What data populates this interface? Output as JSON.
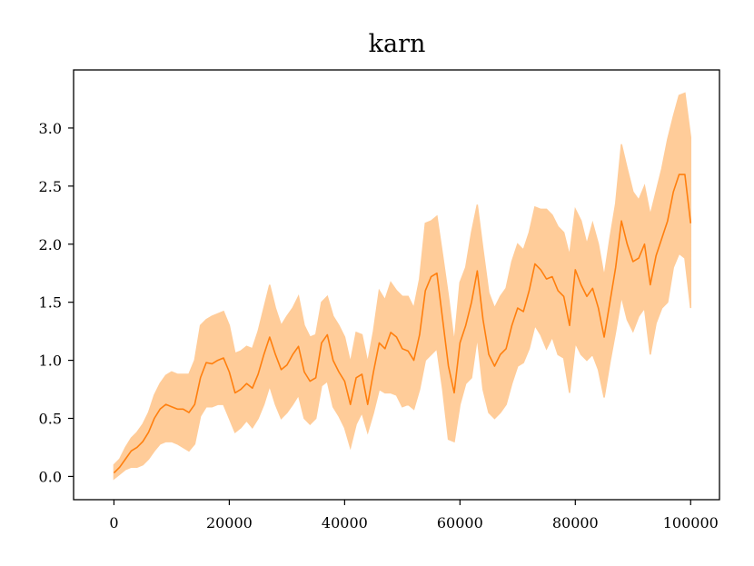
{
  "chart_data": {
    "type": "line",
    "title": "karn",
    "xlabel": "",
    "ylabel": "",
    "xlim": [
      -7000,
      105000
    ],
    "ylim": [
      -0.2,
      3.5
    ],
    "xticks": [
      0,
      20000,
      40000,
      60000,
      80000,
      100000
    ],
    "xtick_labels": [
      "0",
      "20000",
      "40000",
      "60000",
      "80000",
      "100000"
    ],
    "yticks": [
      0.0,
      0.5,
      1.0,
      1.5,
      2.0,
      2.5,
      3.0
    ],
    "ytick_labels": [
      "0.0",
      "0.5",
      "1.0",
      "1.5",
      "2.0",
      "2.5",
      "3.0"
    ],
    "grid": false,
    "series": [
      {
        "color": "#ff7f0e",
        "band_color": "#ffcc99",
        "x": [
          0,
          1000,
          2000,
          3000,
          4000,
          5000,
          6000,
          7000,
          8000,
          9000,
          10000,
          11000,
          12000,
          13000,
          14000,
          15000,
          16000,
          17000,
          18000,
          19000,
          20000,
          21000,
          22000,
          23000,
          24000,
          25000,
          26000,
          27000,
          28000,
          29000,
          30000,
          31000,
          32000,
          33000,
          34000,
          35000,
          36000,
          37000,
          38000,
          39000,
          40000,
          41000,
          42000,
          43000,
          44000,
          45000,
          46000,
          47000,
          48000,
          49000,
          50000,
          51000,
          52000,
          53000,
          54000,
          55000,
          56000,
          57000,
          58000,
          59000,
          60000,
          61000,
          62000,
          63000,
          64000,
          65000,
          66000,
          67000,
          68000,
          69000,
          70000,
          71000,
          72000,
          73000,
          74000,
          75000,
          76000,
          77000,
          78000,
          79000,
          80000,
          81000,
          82000,
          83000,
          84000,
          85000,
          86000,
          87000,
          88000,
          89000,
          90000,
          91000,
          92000,
          93000,
          94000,
          95000,
          96000,
          97000,
          98000,
          99000,
          100000
        ],
        "y": [
          0.03,
          0.08,
          0.15,
          0.22,
          0.25,
          0.3,
          0.38,
          0.5,
          0.58,
          0.62,
          0.6,
          0.58,
          0.58,
          0.55,
          0.62,
          0.85,
          0.98,
          0.97,
          1.0,
          1.02,
          0.9,
          0.72,
          0.75,
          0.8,
          0.76,
          0.88,
          1.05,
          1.2,
          1.05,
          0.92,
          0.96,
          1.05,
          1.12,
          0.9,
          0.82,
          0.85,
          1.15,
          1.22,
          1.0,
          0.9,
          0.82,
          0.62,
          0.85,
          0.88,
          0.62,
          0.9,
          1.15,
          1.1,
          1.24,
          1.2,
          1.1,
          1.08,
          1.0,
          1.22,
          1.6,
          1.72,
          1.75,
          1.35,
          0.95,
          0.72,
          1.15,
          1.3,
          1.5,
          1.77,
          1.35,
          1.05,
          0.95,
          1.05,
          1.1,
          1.3,
          1.45,
          1.42,
          1.6,
          1.83,
          1.78,
          1.7,
          1.72,
          1.6,
          1.55,
          1.3,
          1.78,
          1.65,
          1.55,
          1.62,
          1.45,
          1.2,
          1.5,
          1.8,
          2.2,
          2.0,
          1.85,
          1.88,
          2.0,
          1.65,
          1.9,
          2.05,
          2.2,
          2.45,
          2.6,
          2.6,
          2.18
        ],
        "lower": [
          -0.02,
          0.02,
          0.06,
          0.08,
          0.08,
          0.1,
          0.15,
          0.22,
          0.28,
          0.3,
          0.3,
          0.28,
          0.25,
          0.22,
          0.28,
          0.52,
          0.6,
          0.6,
          0.62,
          0.62,
          0.5,
          0.38,
          0.42,
          0.48,
          0.42,
          0.5,
          0.62,
          0.78,
          0.62,
          0.5,
          0.55,
          0.62,
          0.7,
          0.5,
          0.45,
          0.5,
          0.78,
          0.82,
          0.6,
          0.52,
          0.42,
          0.25,
          0.45,
          0.55,
          0.38,
          0.55,
          0.75,
          0.72,
          0.72,
          0.7,
          0.6,
          0.62,
          0.58,
          0.75,
          1.0,
          1.05,
          1.1,
          0.75,
          0.32,
          0.3,
          0.62,
          0.8,
          0.85,
          1.2,
          0.75,
          0.55,
          0.5,
          0.55,
          0.62,
          0.8,
          0.95,
          0.98,
          1.1,
          1.3,
          1.22,
          1.1,
          1.2,
          1.05,
          1.02,
          0.72,
          1.15,
          1.05,
          1.0,
          1.05,
          0.92,
          0.68,
          0.98,
          1.25,
          1.55,
          1.35,
          1.25,
          1.38,
          1.45,
          1.05,
          1.32,
          1.45,
          1.5,
          1.8,
          1.92,
          1.88,
          1.45
        ],
        "upper": [
          0.1,
          0.15,
          0.25,
          0.33,
          0.38,
          0.45,
          0.55,
          0.7,
          0.8,
          0.87,
          0.9,
          0.88,
          0.88,
          0.88,
          1.0,
          1.3,
          1.35,
          1.38,
          1.4,
          1.42,
          1.3,
          1.06,
          1.08,
          1.12,
          1.1,
          1.25,
          1.45,
          1.65,
          1.45,
          1.3,
          1.38,
          1.45,
          1.55,
          1.3,
          1.2,
          1.22,
          1.5,
          1.55,
          1.38,
          1.3,
          1.2,
          0.98,
          1.24,
          1.22,
          0.98,
          1.25,
          1.6,
          1.52,
          1.67,
          1.6,
          1.55,
          1.55,
          1.45,
          1.7,
          2.18,
          2.2,
          2.24,
          1.9,
          1.55,
          1.15,
          1.67,
          1.8,
          2.1,
          2.34,
          1.95,
          1.58,
          1.45,
          1.55,
          1.62,
          1.85,
          2.0,
          1.95,
          2.1,
          2.32,
          2.3,
          2.3,
          2.25,
          2.15,
          2.1,
          1.9,
          2.3,
          2.2,
          2.0,
          2.18,
          2.0,
          1.72,
          2.05,
          2.35,
          2.86,
          2.65,
          2.45,
          2.38,
          2.5,
          2.25,
          2.45,
          2.65,
          2.9,
          3.1,
          3.28,
          3.3,
          2.92
        ]
      }
    ]
  }
}
